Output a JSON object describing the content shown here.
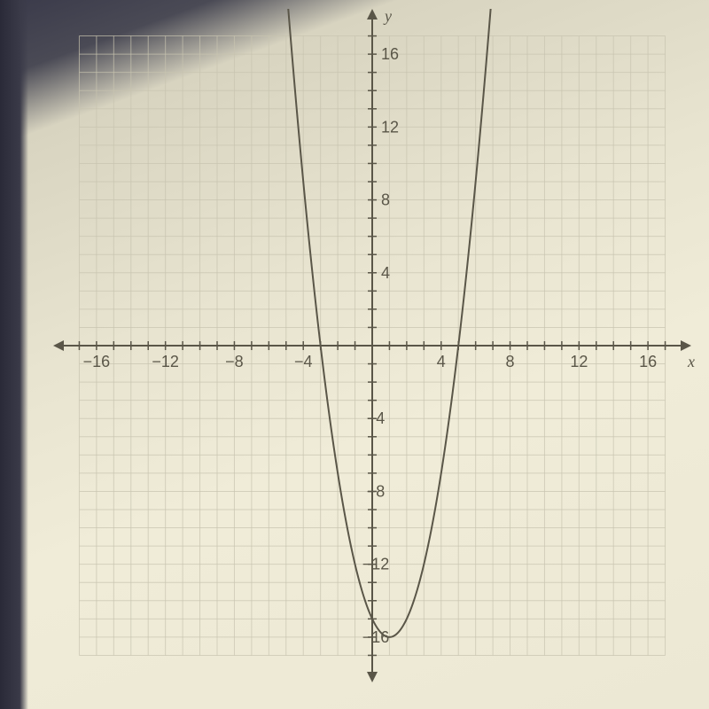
{
  "chart": {
    "type": "line",
    "xlim": [
      -18,
      18
    ],
    "ylim": [
      -18,
      18
    ],
    "xlabel": "x",
    "ylabel": "y",
    "xtick_vals": [
      -16,
      -12,
      -8,
      -4,
      4,
      8,
      12,
      16
    ],
    "xtick_labels": [
      "−16",
      "−12",
      "−8",
      "−4",
      "4",
      "8",
      "12",
      "16"
    ],
    "ytick_vals": [
      -16,
      -12,
      -8,
      -4,
      4,
      8,
      12,
      16
    ],
    "ytick_labels": [
      "−16",
      "−12",
      "−8",
      "−4",
      "4",
      "8",
      "12",
      "16"
    ],
    "grid_step": 1,
    "grid_range": [
      -17,
      17
    ],
    "grid_color": "#c8c4b0",
    "axis_color": "#5a5648",
    "curve_color": "#5a5648",
    "curve_width": 2,
    "background_color": "transparent",
    "parabola": {
      "vertex_x": 1,
      "vertex_y": -16,
      "a": 1.0,
      "x_range": [
        -5.2,
        7.2
      ]
    },
    "tick_fontsize": 18,
    "label_fontsize": 18
  }
}
